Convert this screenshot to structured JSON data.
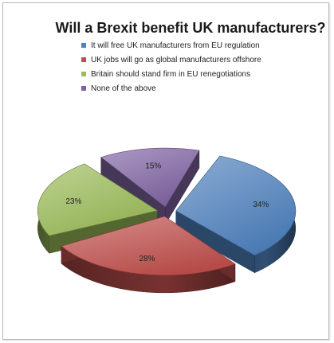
{
  "chart_data": {
    "type": "pie",
    "title": "Will a Brexit benefit UK manufacturers?",
    "categories": [
      "It will free UK manufacturers from EU regulation",
      "UK jobs will go as global manufacturers offshore",
      "Britain should stand firm in EU renegotiations",
      "None of the above"
    ],
    "values": [
      34,
      28,
      23,
      15
    ],
    "value_labels": [
      "34%",
      "28%",
      "23%",
      "15%"
    ],
    "colors": [
      "#4f81bd",
      "#c0504d",
      "#9bbb59",
      "#8064a2"
    ],
    "legend_placement": "top-center",
    "style": "3d-exploded",
    "grid": false
  }
}
